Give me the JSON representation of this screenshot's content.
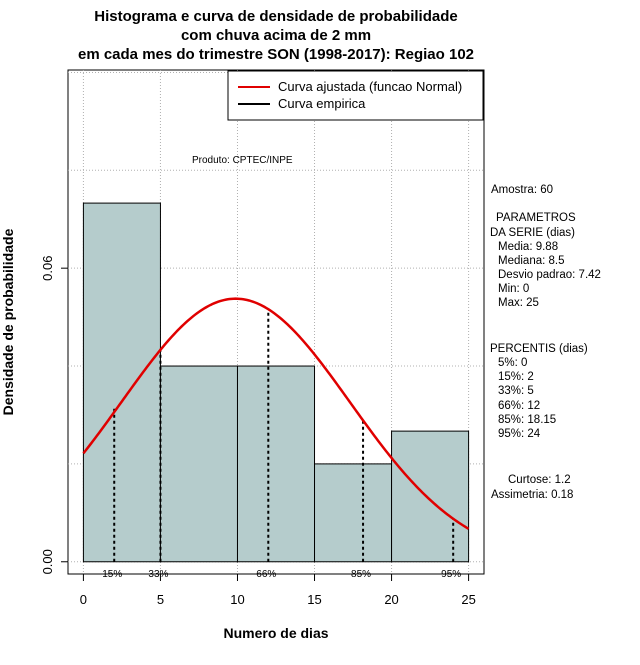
{
  "chart_data": {
    "type": "histogram",
    "title_lines": [
      "Histograma e curva de densidade de probabilidade",
      "com chuva acima de 2 mm",
      "em cada mes do trimestre SON (1998-2017): Regiao 102"
    ],
    "xlabel": "Numero de dias",
    "ylabel": "Densidade de probabilidade",
    "xlim": [
      -1,
      26
    ],
    "ylim": [
      -0.0025,
      0.1005
    ],
    "x_ticks": [
      0,
      5,
      10,
      15,
      20,
      25
    ],
    "y_ticks": [
      0.0,
      0.06
    ],
    "y_tick_labels": [
      "0.00",
      "0.06"
    ],
    "bin_edges": [
      0,
      5,
      10,
      15,
      20,
      25
    ],
    "bins": [
      {
        "start": 0,
        "end": 5,
        "density": 0.0733
      },
      {
        "start": 5,
        "end": 10,
        "density": 0.04
      },
      {
        "start": 10,
        "end": 15,
        "density": 0.04
      },
      {
        "start": 15,
        "end": 20,
        "density": 0.02
      },
      {
        "start": 20,
        "end": 25,
        "density": 0.0267
      }
    ],
    "normal_fit": {
      "mean": 9.88,
      "sd": 7.42,
      "x_range": [
        0,
        25
      ]
    },
    "percentile_lines": [
      {
        "label": "15%",
        "x": 2,
        "y": 0.0318
      },
      {
        "label": "33%",
        "x": 5,
        "y": 0.0438
      },
      {
        "label": "66%",
        "x": 12,
        "y": 0.0515
      },
      {
        "label": "85%",
        "x": 18.15,
        "y": 0.0288
      },
      {
        "label": "95%",
        "x": 24,
        "y": 0.0089
      }
    ],
    "legend": {
      "position": "top-right",
      "entries": [
        {
          "label": "Curva ajustada (funcao Normal)",
          "color": "#e00000"
        },
        {
          "label": "Curva empirica",
          "color": "#000000"
        }
      ]
    },
    "grid": true,
    "colors": {
      "bar_fill": "#b5cccc",
      "bar_stroke": "#000000",
      "fit_line": "#e00000",
      "grid": "#b0b0b0"
    },
    "annotations": {
      "product": "Produto: CPTEC/INPE",
      "sample": "Amostra: 60",
      "params_title_1": "PARAMETROS",
      "params_title_2": "DA SERIE (dias)",
      "params": [
        "Media: 9.88",
        "Mediana: 8.5",
        "Desvio padrao: 7.42",
        "Min: 0",
        "Max: 25"
      ],
      "percentis_title": "PERCENTIS (dias)",
      "percentis": [
        "5%: 0",
        "15%: 2",
        "33%: 5",
        "66%: 12",
        "85%: 18.15",
        "95%: 24"
      ],
      "curtose": "Curtose: 1.2",
      "assimetria": "Assimetria: 0.18"
    }
  }
}
